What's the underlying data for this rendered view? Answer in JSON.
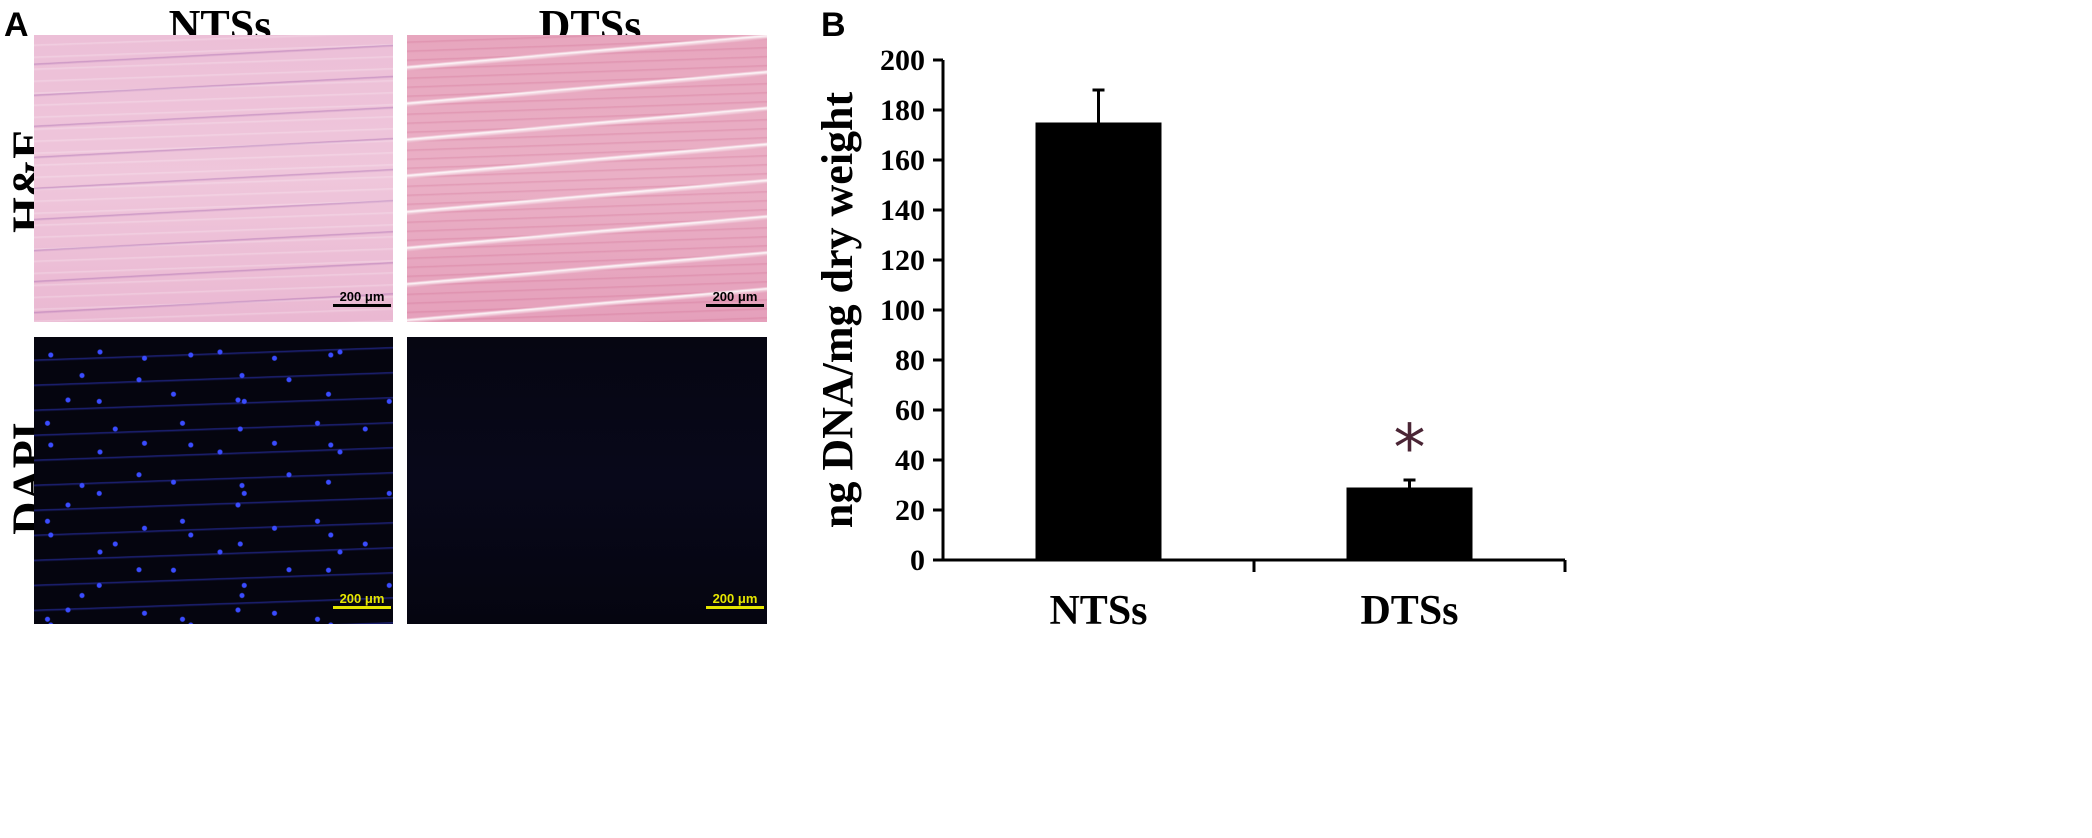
{
  "panel_a": {
    "letter": "A",
    "columns": [
      "NTSs",
      "DTSs"
    ],
    "rows": [
      "H&E",
      "DAPI"
    ],
    "scale_bar_label": "200 μm"
  },
  "panel_b": {
    "letter": "B"
  },
  "chart_data": {
    "type": "bar",
    "categories": [
      "NTSs",
      "DTSs"
    ],
    "values": [
      175,
      29
    ],
    "error_upper": [
      188,
      32
    ],
    "significance_marker": "*",
    "significance_category": "DTSs",
    "title": "",
    "xlabel": "",
    "ylabel": "ng DNA/mg dry weight",
    "ylim": [
      0,
      200
    ],
    "yticks": [
      0,
      20,
      40,
      60,
      80,
      100,
      120,
      140,
      160,
      180,
      200
    ],
    "bar_color": "#000000",
    "grid": false
  }
}
